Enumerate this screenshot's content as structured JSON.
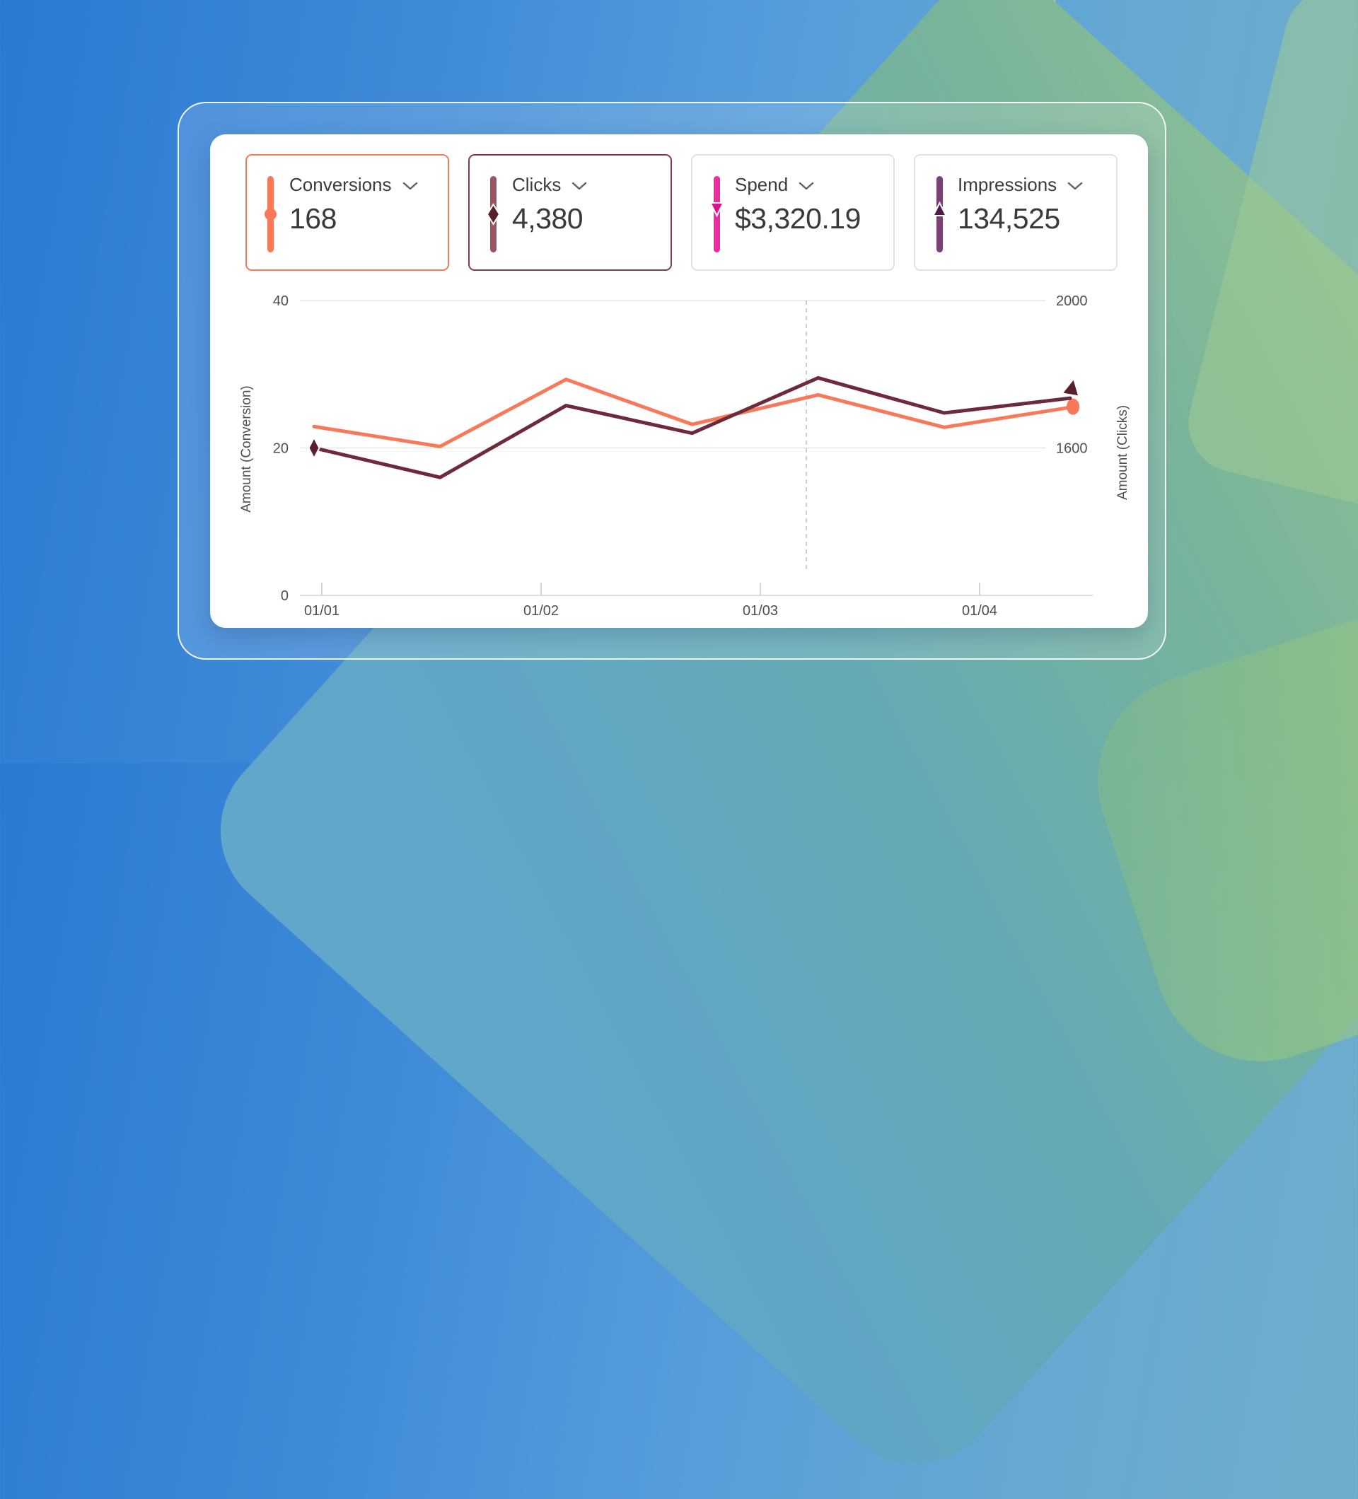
{
  "cards": [
    {
      "label": "Conversions",
      "value": "168",
      "marker": "circle-marker-icon",
      "bar_color": "#F8795A",
      "marker_color": "#F8795A",
      "border_color": "#F8795A",
      "selected": true
    },
    {
      "label": "Clicks",
      "value": "4,380",
      "marker": "diamond-marker-icon",
      "bar_color": "#9B5560",
      "marker_color": "#5A1F2D",
      "border_color": "#7E3D4B",
      "selected": true
    },
    {
      "label": "Spend",
      "value": "$3,320.19",
      "marker": "triangle-down-marker-icon",
      "bar_color": "#EC2B9E",
      "marker_color": "#D6158C",
      "border_color": "#E3E1DF",
      "selected": false
    },
    {
      "label": "Impressions",
      "value": "134,525",
      "marker": "triangle-up-marker-icon",
      "bar_color": "#7A4173",
      "marker_color": "#471E46",
      "border_color": "#E3E1DF",
      "selected": false
    }
  ],
  "chevron_color": "#616161",
  "chart_data": {
    "type": "line",
    "x_tick_labels": [
      "01/01",
      "01/02",
      "01/03",
      "01/04"
    ],
    "left_axis": {
      "title": "Amount (Conversion)",
      "tick_labels": [
        "40",
        "20",
        "0"
      ],
      "tick_values": [
        40,
        20,
        0
      ],
      "range": [
        0,
        40
      ]
    },
    "right_axis": {
      "title": "Amount (Clicks)",
      "tick_labels": [
        "2000",
        "1600"
      ],
      "tick_values": [
        2000,
        1600
      ],
      "range": [
        1200,
        2000
      ]
    },
    "series": [
      {
        "name": "Conversions",
        "axis": "left",
        "color": "#F8795A",
        "line_width": 5,
        "values": [
          22.9,
          20.2,
          29.3,
          23.2,
          27.2,
          22.8,
          25.5
        ],
        "end_marker": "circle",
        "end_marker_color": "#F8795A"
      },
      {
        "name": "Clicks",
        "axis": "right",
        "color": "#6E2A38",
        "line_width": 5,
        "values": [
          1600,
          1520,
          1715,
          1640,
          1790,
          1695,
          1735
        ],
        "start_marker": "diamond",
        "start_marker_color": "#5A1F2D",
        "end_marker": "arrow-up",
        "end_marker_color": "#5A1F2D"
      }
    ],
    "annotations": {
      "dashed_vertical_line": "between 01/03 and 01/04"
    },
    "grid": "horizontal only",
    "legend": "none",
    "colors": {
      "gridline": "#E4E2E0",
      "axis_line": "#D4D2D0",
      "tick_mark": "#C9C7C5",
      "tick_text": "#504E4C",
      "dashed_line": "#C6C4C2"
    }
  }
}
